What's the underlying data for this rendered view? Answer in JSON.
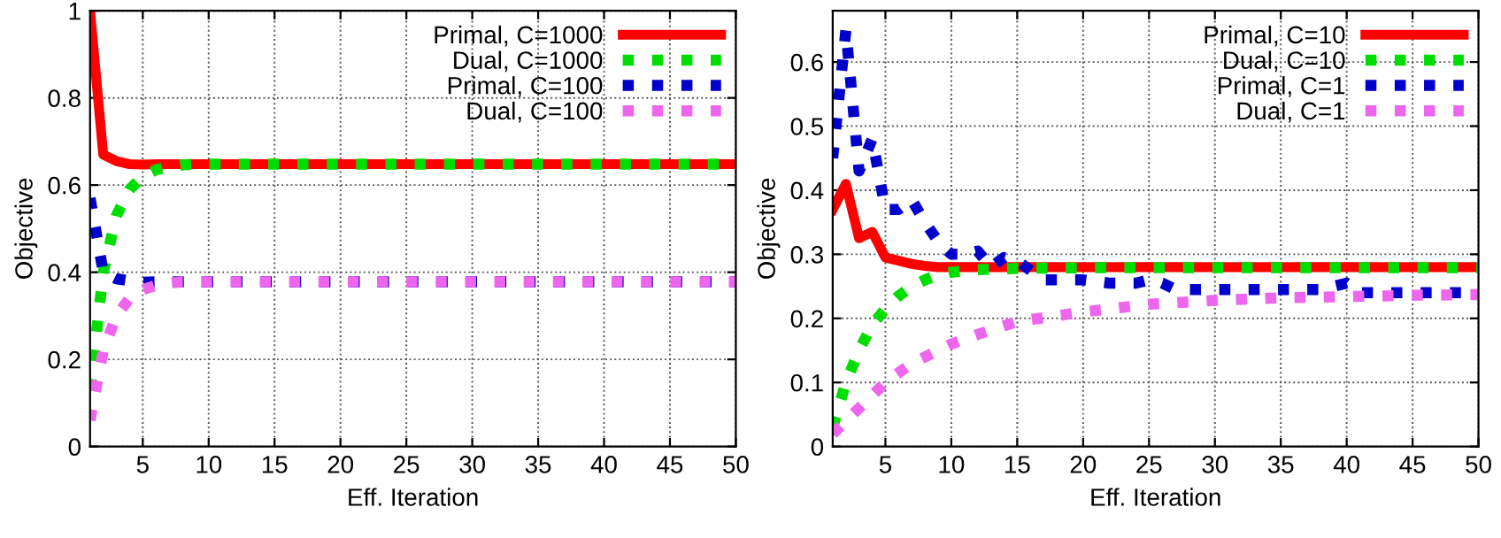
{
  "chart_data": [
    {
      "type": "line",
      "xlabel": "Eff. Iteration",
      "ylabel": "Objective",
      "xlim": [
        1,
        50
      ],
      "xticks": [
        5,
        10,
        15,
        20,
        25,
        30,
        35,
        40,
        45,
        50
      ],
      "ylim": [
        0,
        1
      ],
      "yticks": [
        0,
        0.2,
        0.4,
        0.6,
        0.8,
        1
      ],
      "grid": true,
      "legend": "top right",
      "marker": "none",
      "series": [
        {
          "name": "Primal, C=1000",
          "color": "#ff0000",
          "line_style": "solid",
          "x": [
            1,
            2,
            3,
            4,
            5,
            6,
            10,
            20,
            30,
            40,
            50
          ],
          "values": [
            1.0,
            0.67,
            0.655,
            0.648,
            0.647,
            0.648,
            0.648,
            0.648,
            0.648,
            0.648,
            0.648
          ]
        },
        {
          "name": "Dual, C=1000",
          "color": "#00dd00",
          "line_style": "dotted",
          "x": [
            1,
            2,
            3,
            4,
            5,
            6,
            7,
            8,
            9,
            20,
            30,
            40,
            50
          ],
          "values": [
            0.13,
            0.4,
            0.53,
            0.59,
            0.62,
            0.635,
            0.642,
            0.646,
            0.648,
            0.648,
            0.648,
            0.648,
            0.648
          ]
        },
        {
          "name": "Primal, C=100",
          "color": "#0000cc",
          "line_style": "dotted",
          "x": [
            1,
            2,
            3,
            4,
            5,
            6,
            20,
            30,
            40,
            50
          ],
          "values": [
            0.57,
            0.4,
            0.385,
            0.38,
            0.377,
            0.378,
            0.378,
            0.378,
            0.378,
            0.378
          ]
        },
        {
          "name": "Dual, C=100",
          "color": "#ee66ee",
          "line_style": "dotted",
          "x": [
            1,
            2,
            3,
            4,
            5,
            6,
            7,
            8,
            20,
            30,
            40,
            50
          ],
          "values": [
            0.06,
            0.22,
            0.3,
            0.34,
            0.36,
            0.37,
            0.375,
            0.378,
            0.378,
            0.378,
            0.378,
            0.378
          ]
        }
      ]
    },
    {
      "type": "line",
      "xlabel": "Eff. Iteration",
      "ylabel": "Objective",
      "xlim": [
        1,
        50
      ],
      "xticks": [
        5,
        10,
        15,
        20,
        25,
        30,
        35,
        40,
        45,
        50
      ],
      "ylim": [
        0,
        0.68
      ],
      "yticks": [
        0,
        0.1,
        0.2,
        0.3,
        0.4,
        0.5,
        0.6
      ],
      "grid": true,
      "legend": "top right",
      "marker": "none",
      "series": [
        {
          "name": "Primal, C=10",
          "color": "#ff0000",
          "line_style": "solid",
          "x": [
            1,
            2,
            3,
            4,
            5,
            6,
            7,
            8,
            9,
            20,
            30,
            40,
            50
          ],
          "values": [
            0.37,
            0.41,
            0.325,
            0.335,
            0.295,
            0.29,
            0.285,
            0.282,
            0.28,
            0.28,
            0.28,
            0.28,
            0.28
          ]
        },
        {
          "name": "Dual, C=10",
          "color": "#00dd00",
          "line_style": "dotted",
          "x": [
            1,
            2,
            3,
            4,
            5,
            6,
            7,
            8,
            9,
            10,
            12,
            15,
            20,
            30,
            40,
            50
          ],
          "values": [
            0.03,
            0.1,
            0.15,
            0.19,
            0.215,
            0.235,
            0.25,
            0.26,
            0.268,
            0.272,
            0.276,
            0.278,
            0.279,
            0.279,
            0.279,
            0.279
          ]
        },
        {
          "name": "Primal, C=1",
          "color": "#0000cc",
          "line_style": "dotted",
          "x": [
            1,
            2,
            3,
            4,
            5,
            6,
            7,
            8,
            9,
            10,
            11,
            12,
            13,
            14,
            15,
            16,
            17,
            20,
            22,
            24,
            25,
            26,
            27,
            30,
            35,
            38,
            40,
            41,
            45,
            50
          ],
          "values": [
            0.45,
            0.65,
            0.43,
            0.48,
            0.37,
            0.37,
            0.385,
            0.35,
            0.32,
            0.3,
            0.3,
            0.305,
            0.28,
            0.295,
            0.29,
            0.275,
            0.26,
            0.26,
            0.255,
            0.255,
            0.26,
            0.255,
            0.245,
            0.245,
            0.245,
            0.245,
            0.255,
            0.24,
            0.24,
            0.24
          ]
        },
        {
          "name": "Dual, C=1",
          "color": "#ee66ee",
          "line_style": "dotted",
          "x": [
            1,
            2,
            3,
            4,
            5,
            7,
            10,
            12,
            15,
            20,
            25,
            30,
            35,
            40,
            45,
            50
          ],
          "values": [
            0.02,
            0.04,
            0.06,
            0.08,
            0.1,
            0.13,
            0.16,
            0.175,
            0.195,
            0.21,
            0.222,
            0.228,
            0.232,
            0.234,
            0.236,
            0.237
          ]
        }
      ]
    }
  ]
}
